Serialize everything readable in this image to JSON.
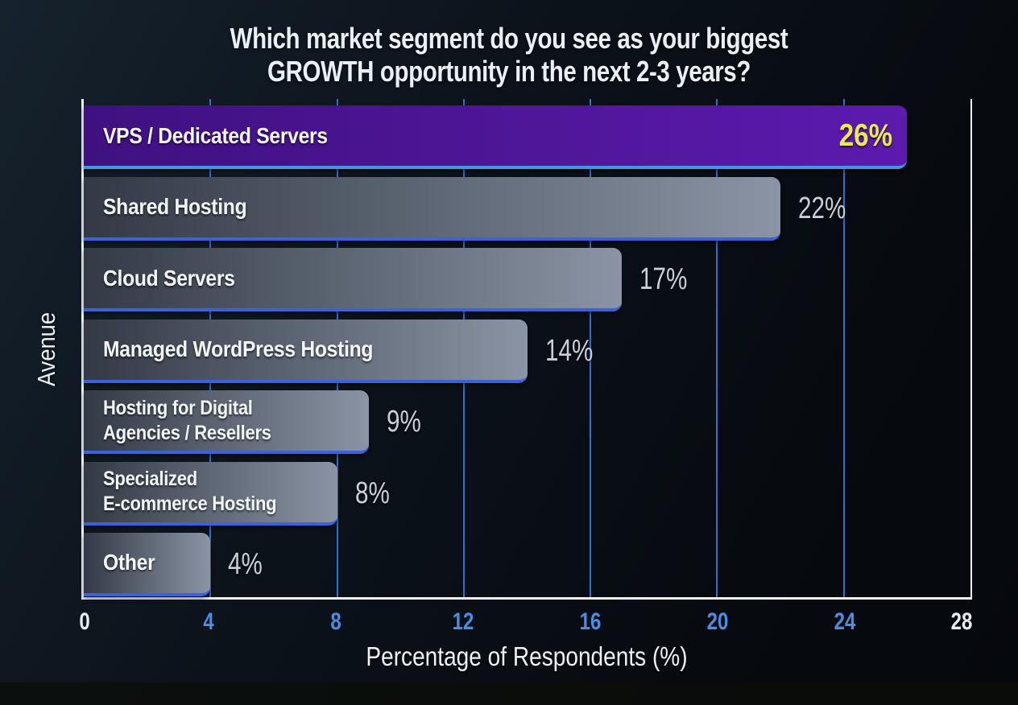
{
  "chart_data": {
    "type": "bar",
    "orientation": "horizontal",
    "title": "Which market segment do you see as your biggest\nGROWTH opportunity in the next 2-3 years?",
    "xlabel": "Percentage of Respondents (%)",
    "ylabel": "Avenue",
    "xlim": [
      0,
      28
    ],
    "xticks": [
      0,
      4,
      8,
      12,
      16,
      20,
      24,
      28
    ],
    "grid": "vertical gridlines at interior ticks only",
    "legend": "none",
    "categories": [
      "VPS / Dedicated Servers",
      "Shared Hosting",
      "Cloud Servers",
      "Managed WordPress Hosting",
      "Hosting for Digital\nAgencies / Resellers",
      "Specialized\nE-commerce Hosting",
      "Other"
    ],
    "values": [
      26,
      22,
      17,
      14,
      9,
      8,
      4
    ],
    "bars": [
      {
        "category": "VPS / Dedicated Servers",
        "value": 26,
        "label": "26%",
        "highlight": true,
        "value_position": "inside"
      },
      {
        "category": "Shared Hosting",
        "value": 22,
        "label": "22%",
        "highlight": false,
        "value_position": "outside"
      },
      {
        "category": "Cloud Servers",
        "value": 17,
        "label": "17%",
        "highlight": false,
        "value_position": "outside"
      },
      {
        "category": "Managed WordPress Hosting",
        "value": 14,
        "label": "14%",
        "highlight": false,
        "value_position": "outside"
      },
      {
        "category": "Hosting for Digital\nAgencies / Resellers",
        "value": 9,
        "label": "9%",
        "highlight": false,
        "value_position": "outside"
      },
      {
        "category": "Specialized\nE-commerce Hosting",
        "value": 8,
        "label": "8%",
        "highlight": false,
        "value_position": "outside"
      },
      {
        "category": "Other",
        "value": 4,
        "label": "4%",
        "highlight": false,
        "value_position": "outside"
      }
    ],
    "colors": {
      "background": "#0b1118",
      "title_color": "#e9f1f6",
      "highlight_bar_gradient": [
        "#3f1180",
        "#5c1aae"
      ],
      "bar_gradient": [
        "#333a46",
        "#8a94a4"
      ],
      "highlight_value_color": "#e7eb4d",
      "value_color": "#c7d0d8",
      "category_color": "#f2f6f9",
      "grid_color": "#2e6fd4",
      "axis_spine_color": "#eef2f5",
      "tick_color_interior": "#4a8de2",
      "tick_color_ends": "#e9eef2",
      "bar_underline": "#3a62df",
      "highlight_bar_underline": "#3f97e8"
    }
  }
}
